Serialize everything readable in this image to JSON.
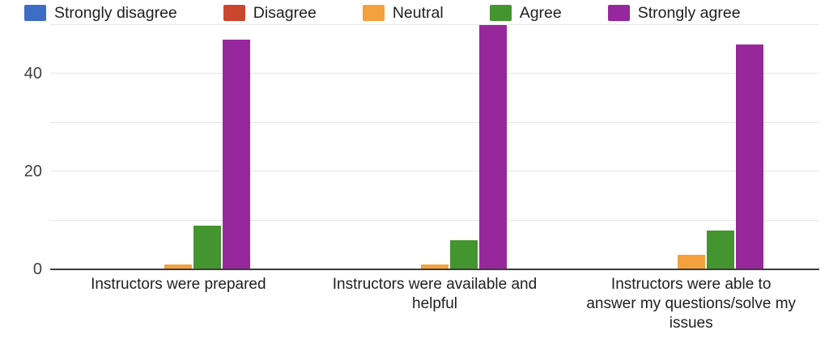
{
  "chart_data": {
    "type": "bar",
    "title": "",
    "xlabel": "",
    "ylabel": "",
    "categories": [
      "Instructors were prepared",
      "Instructors were available and helpful",
      "Instructors were able to answer my questions/solve my issues"
    ],
    "series": [
      {
        "name": "Strongly disagree",
        "color": "#3E6DC5",
        "values": [
          0,
          0,
          0
        ]
      },
      {
        "name": "Disagree",
        "color": "#C8472D",
        "values": [
          0,
          0,
          0
        ]
      },
      {
        "name": "Neutral",
        "color": "#F2A13D",
        "values": [
          1,
          1,
          3
        ]
      },
      {
        "name": "Agree",
        "color": "#44942F",
        "values": [
          9,
          6,
          8
        ]
      },
      {
        "name": "Strongly agree",
        "color": "#97289B",
        "values": [
          47,
          50,
          46
        ]
      }
    ],
    "yticks": [
      0,
      20,
      40
    ],
    "ylim": [
      0,
      50
    ],
    "grid_step": 10,
    "grid": true,
    "legend_position": "top",
    "colors": {
      "gridline": "#E6E6E6",
      "baseline": "#3D3D3D",
      "tick_text": "#404040",
      "label_text": "#1F1F1F"
    }
  }
}
